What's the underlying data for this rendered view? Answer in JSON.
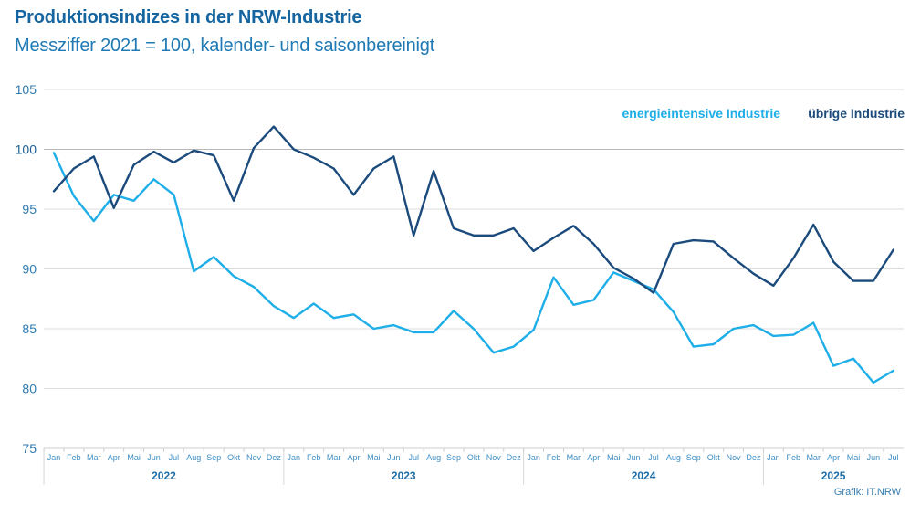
{
  "header": {
    "title": "Produktionsindizes in der NRW-Industrie",
    "subtitle": "Messziffer 2021 = 100, kalender- und saisonbereinigt"
  },
  "footer": {
    "source": "Grafik: IT.NRW"
  },
  "colors": {
    "energieintensive": "#1eaee8",
    "uebrige": "#1b4a7c",
    "title": "#1565a0",
    "grid": "#dcdcdc",
    "baseline_grid": "#b8b8b8"
  },
  "chart_data": {
    "type": "line",
    "title": "Produktionsindizes in der NRW-Industrie",
    "subtitle": "Messziffer 2021 = 100, kalender- und saisonbereinigt",
    "xlabel": "",
    "ylabel": "",
    "ylim": [
      75,
      105
    ],
    "yticks": [
      75,
      80,
      85,
      90,
      95,
      100,
      105
    ],
    "grid": true,
    "legend_position": "top-right",
    "years": [
      {
        "label": "2022",
        "months": 12
      },
      {
        "label": "2023",
        "months": 12
      },
      {
        "label": "2024",
        "months": 12
      },
      {
        "label": "2025",
        "months": 7
      }
    ],
    "month_labels": [
      "Jan",
      "Feb",
      "Mar",
      "Apr",
      "Mai",
      "Jun",
      "Jul",
      "Aug",
      "Sep",
      "Okt",
      "Nov",
      "Dez"
    ],
    "x": [
      "2022-01",
      "2022-02",
      "2022-03",
      "2022-04",
      "2022-05",
      "2022-06",
      "2022-07",
      "2022-08",
      "2022-09",
      "2022-10",
      "2022-11",
      "2022-12",
      "2023-01",
      "2023-02",
      "2023-03",
      "2023-04",
      "2023-05",
      "2023-06",
      "2023-07",
      "2023-08",
      "2023-09",
      "2023-10",
      "2023-11",
      "2023-12",
      "2024-01",
      "2024-02",
      "2024-03",
      "2024-04",
      "2024-05",
      "2024-06",
      "2024-07",
      "2024-08",
      "2024-09",
      "2024-10",
      "2024-11",
      "2024-12",
      "2025-01",
      "2025-02",
      "2025-03",
      "2025-04",
      "2025-05",
      "2025-06",
      "2025-07"
    ],
    "series": [
      {
        "name": "energieintensive Industrie",
        "color": "#1eaee8",
        "values": [
          99.7,
          96.1,
          94.0,
          96.2,
          95.7,
          97.5,
          96.2,
          89.8,
          91.0,
          89.4,
          88.5,
          86.9,
          85.9,
          87.1,
          85.9,
          86.2,
          85.0,
          85.3,
          84.7,
          84.7,
          86.5,
          85.0,
          83.0,
          83.5,
          84.9,
          89.3,
          87.0,
          87.4,
          89.7,
          89.0,
          88.3,
          86.4,
          83.5,
          83.7,
          85.0,
          85.3,
          84.4,
          84.5,
          85.5,
          81.9,
          82.5,
          80.5,
          81.5
        ]
      },
      {
        "name": "übrige Industrie",
        "color": "#1b4a7c",
        "values": [
          96.5,
          98.4,
          99.4,
          95.1,
          98.7,
          99.8,
          98.9,
          99.9,
          99.5,
          95.7,
          100.1,
          101.9,
          100.0,
          99.3,
          98.4,
          96.2,
          98.4,
          99.4,
          92.8,
          98.2,
          93.4,
          92.8,
          92.8,
          93.4,
          91.5,
          92.6,
          93.6,
          92.1,
          90.1,
          89.2,
          88.0,
          92.1,
          92.4,
          92.3,
          90.9,
          89.6,
          88.6,
          90.9,
          93.7,
          90.6,
          89.0,
          89.0,
          91.6
        ]
      }
    ]
  }
}
